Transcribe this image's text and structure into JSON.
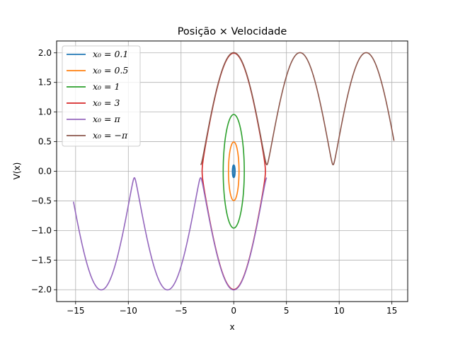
{
  "chart_data": {
    "type": "line",
    "title": "Posição × Velocidade",
    "xlabel": "x",
    "ylabel": "V(x)",
    "xlim": [
      -16.8,
      16.5
    ],
    "ylim": [
      -2.2,
      2.2
    ],
    "xticks": [
      -15,
      -10,
      -5,
      0,
      5,
      10,
      15
    ],
    "xtick_labels": [
      "−15",
      "−10",
      "−5",
      "0",
      "5",
      "10",
      "15"
    ],
    "yticks": [
      -2.0,
      -1.5,
      -1.0,
      -0.5,
      0.0,
      0.5,
      1.0,
      1.5,
      2.0
    ],
    "ytick_labels": [
      "−2.0",
      "−1.5",
      "−1.0",
      "−0.5",
      "0.0",
      "0.5",
      "1.0",
      "1.5",
      "2.0"
    ],
    "grid": true,
    "legend_position": "upper-left",
    "series": [
      {
        "name": "x₀ = 0.1",
        "color": "#1f77b4",
        "kind": "closed",
        "x0": 0.1
      },
      {
        "name": "x₀ = 0.5",
        "color": "#ff7f0e",
        "kind": "closed",
        "x0": 0.5
      },
      {
        "name": "x₀ = 1",
        "color": "#2ca02c",
        "kind": "closed",
        "x0": 1.0
      },
      {
        "name": "x₀ = 3",
        "color": "#d62728",
        "kind": "closed",
        "x0": 3.0
      },
      {
        "name": "x₀ = π",
        "color": "#9467bd",
        "kind": "open",
        "x_start": 3.14,
        "x_end": -15.2,
        "sign": -1
      },
      {
        "name": "x₀ = −π",
        "color": "#8c564b",
        "kind": "open",
        "x_start": -3.14,
        "x_end": 15.2,
        "sign": 1
      }
    ]
  }
}
